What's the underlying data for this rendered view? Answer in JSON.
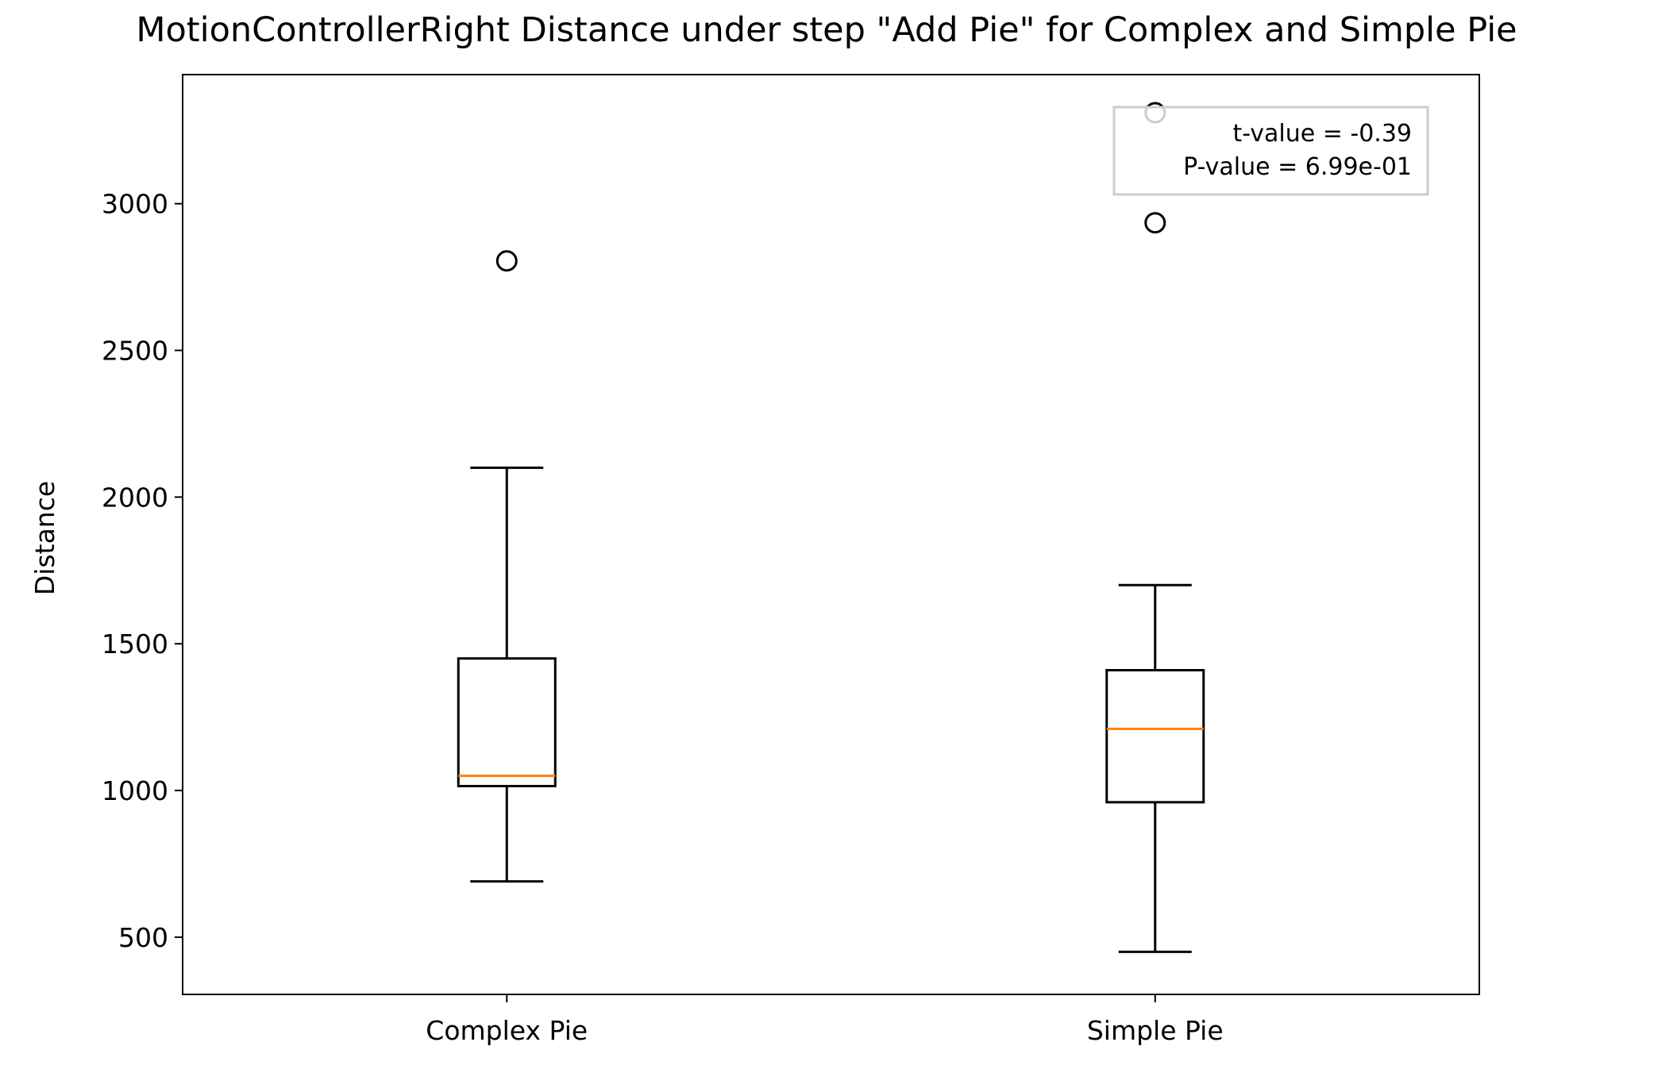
{
  "chart_data": {
    "type": "box",
    "title": "MotionControllerRight Distance under step \"Add Pie\" for Complex and Simple Pie",
    "xlabel": "",
    "ylabel": "Distance",
    "ylim": [
      305,
      3440
    ],
    "yticks": [
      500,
      1000,
      1500,
      2000,
      2500,
      3000
    ],
    "categories": [
      "Complex Pie",
      "Simple Pie"
    ],
    "boxes": [
      {
        "category": "Complex Pie",
        "whisker_low": 690,
        "q1": 1015,
        "median": 1050,
        "q3": 1450,
        "whisker_high": 2100,
        "outliers": [
          2805
        ]
      },
      {
        "category": "Simple Pie",
        "whisker_low": 450,
        "q1": 960,
        "median": 1210,
        "q3": 1410,
        "whisker_high": 1700,
        "outliers": [
          2935,
          3310
        ]
      }
    ],
    "annotation": {
      "lines": [
        "t-value = -0.39",
        "P-value = 6.99e-01"
      ]
    },
    "grid": false,
    "colors": {
      "box": "#000000",
      "median": "#ff7f0e",
      "annotation_border": "#cccccc"
    }
  }
}
